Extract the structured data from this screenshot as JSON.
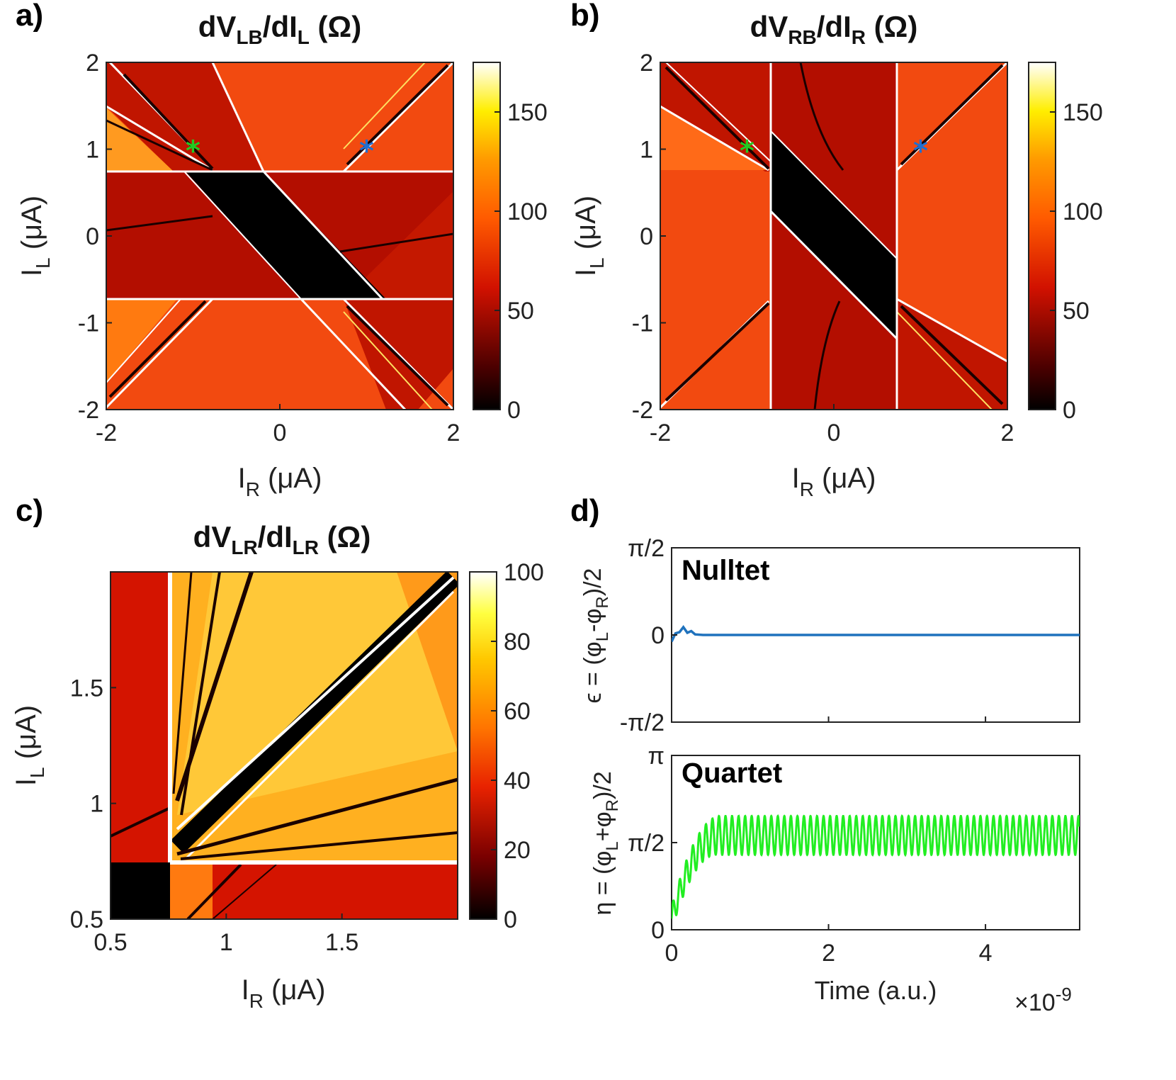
{
  "chart_data": [
    {
      "panel": "a)",
      "type": "heatmap",
      "title": "dV_LB/dI_L (Ω)",
      "title_main": "dV",
      "title_sub1": "LB",
      "title_mid": "/dI",
      "title_sub2": "L",
      "title_end": " (Ω)",
      "xlabel": "I_R (μA)",
      "ylabel": "I_L (μA)",
      "xlim": [
        -2,
        2
      ],
      "ylim": [
        -2,
        2
      ],
      "xticks": [
        "-2",
        "0",
        "2"
      ],
      "yticks": [
        "-2",
        "-1",
        "0",
        "1",
        "2"
      ],
      "colorbar": {
        "range": [
          0,
          175
        ],
        "ticks": [
          "0",
          "50",
          "100",
          "150"
        ]
      },
      "markers": [
        {
          "x": -1,
          "y": 1,
          "color": "#22cc22"
        },
        {
          "x": 1,
          "y": 1,
          "color": "#1f6fd1"
        }
      ]
    },
    {
      "panel": "b)",
      "type": "heatmap",
      "title": "dV_RB/dI_R (Ω)",
      "title_main": "dV",
      "title_sub1": "RB",
      "title_mid": "/dI",
      "title_sub2": "R",
      "title_end": " (Ω)",
      "xlabel": "I_R (μA)",
      "ylabel": "I_L (μA)",
      "xlim": [
        -2,
        2
      ],
      "ylim": [
        -2,
        2
      ],
      "xticks": [
        "-2",
        "0",
        "2"
      ],
      "yticks": [
        "-2",
        "-1",
        "0",
        "1",
        "2"
      ],
      "colorbar": {
        "range": [
          0,
          175
        ],
        "ticks": [
          "0",
          "50",
          "100",
          "150"
        ]
      },
      "markers": [
        {
          "x": -1,
          "y": 1,
          "color": "#22cc22"
        },
        {
          "x": 1,
          "y": 1,
          "color": "#1f6fd1"
        }
      ]
    },
    {
      "panel": "c)",
      "type": "heatmap",
      "title": "dV_LR/dI_LR (Ω)",
      "title_main": "dV",
      "title_sub1": "LR",
      "title_mid": "/dI",
      "title_sub2": "LR",
      "title_end": " (Ω)",
      "xlabel": "I_R (μA)",
      "ylabel": "I_L (μA)",
      "xlim": [
        0.5,
        2
      ],
      "ylim": [
        0.5,
        2
      ],
      "xticks": [
        "0.5",
        "1",
        "1.5"
      ],
      "yticks": [
        "0.5",
        "1",
        "1.5"
      ],
      "colorbar": {
        "range": [
          0,
          100
        ],
        "ticks": [
          "0",
          "20",
          "40",
          "60",
          "80",
          "100"
        ]
      }
    },
    {
      "panel": "d)",
      "type": "line",
      "subplots": [
        {
          "inset_label": "Nulltet",
          "ylabel": "ε = (φ_L-φ_R)/2",
          "ylim": [
            -1.5708,
            1.5708
          ],
          "yticks": [
            "-π/2",
            "0",
            "π/2"
          ],
          "color": "#1f72bd",
          "x": [
            0,
            0.05,
            0.1,
            0.15,
            0.2,
            0.25,
            0.3,
            0.4,
            0.6,
            1,
            2,
            3,
            4,
            5.2
          ],
          "values": [
            -0.12,
            0.03,
            0.05,
            0.14,
            0.04,
            0.07,
            0.01,
            0.0,
            0.0,
            0.0,
            0.0,
            0.0,
            0.0,
            0.0
          ]
        },
        {
          "inset_label": "Quartet",
          "ylabel": "η = (φ_L+φ_R)/2",
          "ylim": [
            0,
            3.1416
          ],
          "yticks": [
            "0",
            "π/2",
            "π"
          ],
          "color": "#22ee22",
          "oscillation": {
            "center": 1.7,
            "amplitude": 0.35,
            "period": 0.0833,
            "settle_time": 0.6,
            "start_value": 0.2
          },
          "x_range": [
            0,
            5.2
          ]
        }
      ],
      "xlabel": "Time (a.u.)",
      "xticks": [
        "0",
        "2",
        "4"
      ],
      "x_scale_note": "×10",
      "x_scale_exp": "-9",
      "xlim": [
        0,
        5.2
      ]
    }
  ]
}
